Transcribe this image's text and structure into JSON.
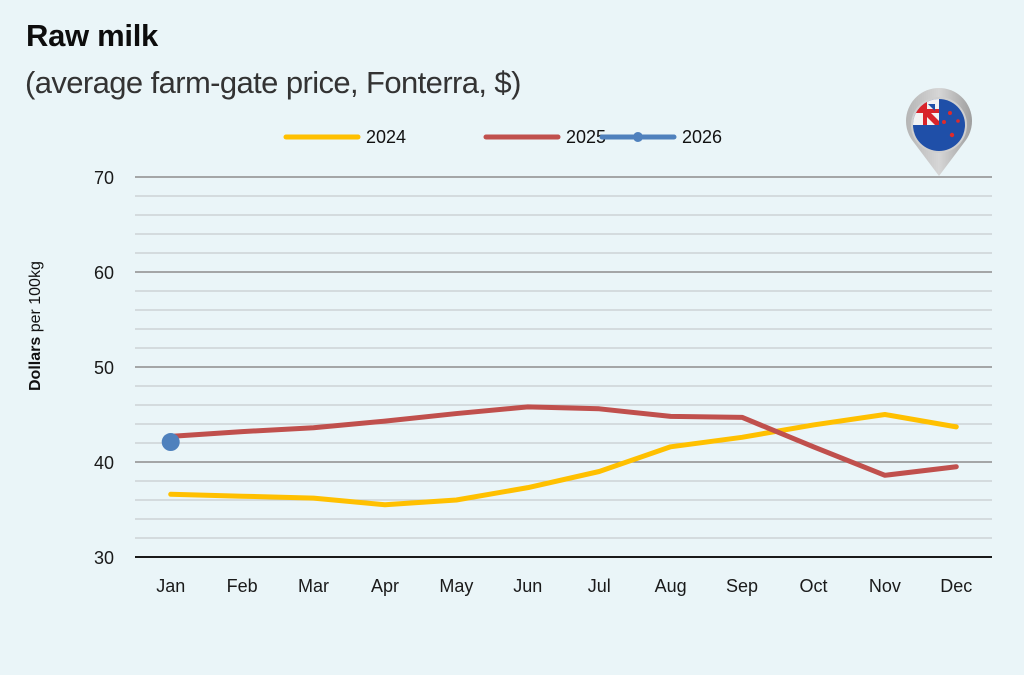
{
  "header": {
    "title": "Raw milk",
    "subtitle": "(average farm-gate price, Fonterra, $)"
  },
  "icons": {
    "flag_pin": "new-zealand-flag-pin-icon"
  },
  "colors": {
    "background": "#eaf5f8",
    "series_2024": "#ffc000",
    "series_2025": "#c0504d",
    "series_2026": "#4f81bd",
    "major_grid": "#8c8c8c",
    "minor_grid": "#c8cccd",
    "axis": "#1a1a1a"
  },
  "chart_data": {
    "type": "line",
    "title": "Raw milk",
    "subtitle": "(average farm-gate price, Fonterra, $)",
    "xlabel": "",
    "ylabel": "Dollars per 100kg",
    "ylabel_bold": "Dollars",
    "ylabel_rest": " per 100kg",
    "ylim": [
      30,
      70
    ],
    "yticks": [
      30,
      40,
      50,
      60,
      70
    ],
    "minor_ytick_step": 2,
    "grid": true,
    "legend_position": "top",
    "categories": [
      "Jan",
      "Feb",
      "Mar",
      "Apr",
      "May",
      "Jun",
      "Jul",
      "Aug",
      "Sep",
      "Oct",
      "Nov",
      "Dec"
    ],
    "series": [
      {
        "name": "2024",
        "color": "#ffc000",
        "marker": false,
        "values": [
          36.6,
          36.4,
          36.2,
          35.5,
          36.0,
          37.3,
          39.0,
          41.6,
          42.6,
          43.9,
          45.0,
          43.7
        ]
      },
      {
        "name": "2025",
        "color": "#c0504d",
        "marker": false,
        "values": [
          42.7,
          43.2,
          43.6,
          44.3,
          45.1,
          45.8,
          45.6,
          44.8,
          44.7,
          41.6,
          38.6,
          39.5
        ]
      },
      {
        "name": "2026",
        "color": "#4f81bd",
        "marker": true,
        "values": [
          42.1,
          null,
          null,
          null,
          null,
          null,
          null,
          null,
          null,
          null,
          null,
          null
        ]
      }
    ]
  }
}
